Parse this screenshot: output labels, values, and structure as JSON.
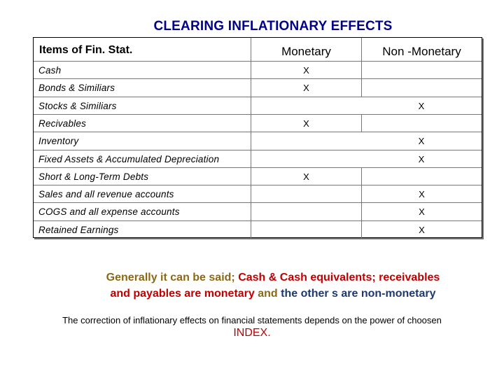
{
  "title": "CLEARING INFLATIONARY EFFECTS",
  "table": {
    "headers": [
      "Items of Fin. Stat.",
      "Monetary",
      "Non -Monetary"
    ],
    "rows": [
      {
        "item": "Cash",
        "monetary": "X",
        "non_monetary": ""
      },
      {
        "item": "Bonds & Similiars",
        "monetary": "X",
        "non_monetary": ""
      },
      {
        "item": "Stocks & Similiars",
        "monetary": "",
        "non_monetary": "X"
      },
      {
        "item": "Recivables",
        "monetary": "X",
        "non_monetary": ""
      },
      {
        "item": "Inventory",
        "monetary": "",
        "non_monetary": "X"
      },
      {
        "item": "Fixed Assets & Accumulated Depreciation",
        "monetary": "",
        "non_monetary": "X"
      },
      {
        "item": "Short & Long-Term Debts",
        "monetary": "X",
        "non_monetary": ""
      },
      {
        "item": "Sales and all revenue accounts",
        "monetary": "",
        "non_monetary": "X"
      },
      {
        "item": "COGS and all expense accounts",
        "monetary": "",
        "non_monetary": "X"
      },
      {
        "item": "Retained Earnings",
        "monetary": "",
        "non_monetary": "X"
      }
    ]
  },
  "summary": {
    "line1_a": "Generally it can be said; ",
    "line1_b": "Cash & Cash equivalents; receivables",
    "line2_a": "and payables are monetary",
    "line2_b": " and ",
    "line2_c": "the other s are non-monetary"
  },
  "footer": {
    "text": "The correction of inflationary effects on financial statements depends on the power of choosen",
    "index": "INDEX."
  },
  "colors": {
    "title": "#00008b",
    "summary_brown": "#8b6914",
    "summary_red": "#c00000",
    "summary_navy": "#1f3a6e",
    "index": "#c00000"
  }
}
